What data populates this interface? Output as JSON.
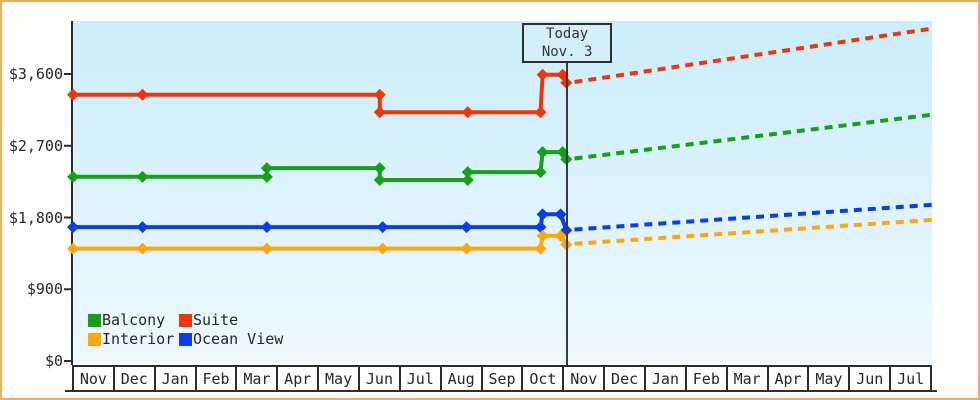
{
  "page": {
    "border_color": "#edae62",
    "background": "#ffffff",
    "plot_background_top": "#cbedfb",
    "plot_background_bottom": "#eef9fe",
    "axis_color": "#2d2d2d"
  },
  "legend": {
    "rows": [
      [
        {
          "label": "Balcony",
          "color": "#16a016"
        },
        {
          "label": "Suite",
          "color": "#f23508"
        }
      ],
      [
        {
          "label": "Interior",
          "color": "#ffa60a"
        },
        {
          "label": "Ocean View",
          "color": "#0b3cf1"
        }
      ]
    ]
  },
  "chart_data": {
    "type": "line",
    "title": "",
    "xlabel": "",
    "ylabel": "",
    "grid": false,
    "legend_position": "inside-bottom-left",
    "x": {
      "unit": "months-from-start",
      "range": [
        0,
        21
      ],
      "month_labels": [
        "Nov",
        "Dec",
        "Jan",
        "Feb",
        "Mar",
        "Apr",
        "May",
        "Jun",
        "Jul",
        "Aug",
        "Sep",
        "Oct",
        "Nov",
        "Dec",
        "Jan",
        "Feb",
        "Mar",
        "Apr",
        "May",
        "Jun",
        "Jul"
      ]
    },
    "y": {
      "min": 0,
      "max": 4265,
      "ticks": [
        {
          "label": "$0",
          "value": 0
        },
        {
          "label": "$900",
          "value": 900
        },
        {
          "label": "$1,800",
          "value": 1800
        },
        {
          "label": "$2,700",
          "value": 2700
        },
        {
          "label": "$3,600",
          "value": 3600
        }
      ]
    },
    "annotations": {
      "today": {
        "x": 12.08,
        "text": [
          "Today",
          "Nov. 3"
        ]
      }
    },
    "series": [
      {
        "name": "Suite",
        "color": "#f23508",
        "style_solid": "history",
        "style_dotted": "projection",
        "solid": [
          [
            0,
            3340
          ],
          [
            1.7,
            3340
          ],
          [
            7.5,
            3340
          ],
          [
            7.5,
            3120
          ],
          [
            9.65,
            3120
          ],
          [
            11.43,
            3120
          ],
          [
            11.48,
            3590
          ],
          [
            11.97,
            3590
          ],
          [
            12.06,
            3490
          ]
        ],
        "dotted": [
          [
            12.26,
            3500
          ],
          [
            21,
            4170
          ]
        ]
      },
      {
        "name": "Balcony",
        "color": "#16a016",
        "style_solid": "history",
        "style_dotted": "projection",
        "solid": [
          [
            0,
            2310
          ],
          [
            1.7,
            2310
          ],
          [
            4.74,
            2310
          ],
          [
            4.74,
            2420
          ],
          [
            7.5,
            2420
          ],
          [
            7.5,
            2270
          ],
          [
            9.65,
            2270
          ],
          [
            9.65,
            2370
          ],
          [
            11.43,
            2370
          ],
          [
            11.48,
            2620
          ],
          [
            11.97,
            2620
          ],
          [
            12.06,
            2530
          ]
        ],
        "dotted": [
          [
            12.26,
            2540
          ],
          [
            21,
            3090
          ]
        ]
      },
      {
        "name": "Ocean View",
        "color": "#0b3cf1",
        "style_solid": "history",
        "style_dotted": "projection",
        "solid": [
          [
            0,
            1680
          ],
          [
            1.7,
            1680
          ],
          [
            4.74,
            1680
          ],
          [
            7.57,
            1680
          ],
          [
            9.62,
            1680
          ],
          [
            11.43,
            1680
          ],
          [
            11.48,
            1840
          ],
          [
            11.92,
            1840
          ],
          [
            12.06,
            1640
          ]
        ],
        "dotted": [
          [
            12.26,
            1650
          ],
          [
            21,
            1960
          ]
        ]
      },
      {
        "name": "Interior",
        "color": "#ffa60a",
        "style_solid": "history",
        "style_dotted": "projection",
        "solid": [
          [
            0,
            1410
          ],
          [
            1.7,
            1410
          ],
          [
            4.74,
            1410
          ],
          [
            7.57,
            1410
          ],
          [
            9.62,
            1410
          ],
          [
            11.43,
            1410
          ],
          [
            11.48,
            1570
          ],
          [
            11.92,
            1570
          ],
          [
            12.06,
            1460
          ]
        ],
        "dotted": [
          [
            12.26,
            1470
          ],
          [
            21,
            1770
          ]
        ]
      }
    ]
  }
}
